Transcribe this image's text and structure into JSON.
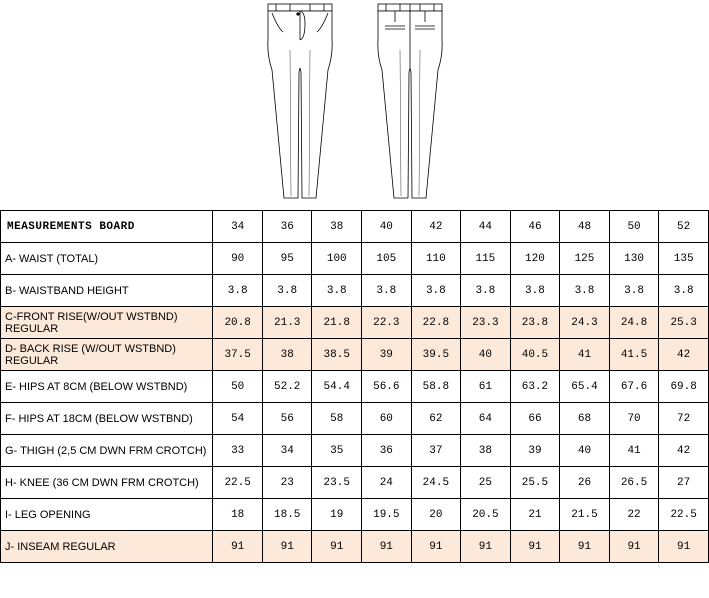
{
  "title": "MEASUREMENTS BOARD",
  "sizes": [
    "34",
    "36",
    "38",
    "40",
    "42",
    "44",
    "46",
    "48",
    "50",
    "52"
  ],
  "rows": [
    {
      "label": "A- WAIST (TOTAL)",
      "peach": false,
      "values": [
        "90",
        "95",
        "100",
        "105",
        "110",
        "115",
        "120",
        "125",
        "130",
        "135"
      ]
    },
    {
      "label": "B- WAISTBAND HEIGHT",
      "peach": false,
      "values": [
        "3.8",
        "3.8",
        "3.8",
        "3.8",
        "3.8",
        "3.8",
        "3.8",
        "3.8",
        "3.8",
        "3.8"
      ]
    },
    {
      "label": "C-FRONT RISE(W/OUT WSTBND) REGULAR",
      "peach": true,
      "values": [
        "20.8",
        "21.3",
        "21.8",
        "22.3",
        "22.8",
        "23.3",
        "23.8",
        "24.3",
        "24.8",
        "25.3"
      ]
    },
    {
      "label": "D- BACK RISE (W/OUT WSTBND) REGULAR",
      "peach": true,
      "values": [
        "37.5",
        "38",
        "38.5",
        "39",
        "39.5",
        "40",
        "40.5",
        "41",
        "41.5",
        "42"
      ]
    },
    {
      "label": "E- HIPS AT 8CM (BELOW WSTBND)",
      "peach": false,
      "values": [
        "50",
        "52.2",
        "54.4",
        "56.6",
        "58.8",
        "61",
        "63.2",
        "65.4",
        "67.6",
        "69.8"
      ]
    },
    {
      "label": "F- HIPS AT 18CM (BELOW WSTBND)",
      "peach": false,
      "values": [
        "54",
        "56",
        "58",
        "60",
        "62",
        "64",
        "66",
        "68",
        "70",
        "72"
      ]
    },
    {
      "label": "G- THIGH (2,5 CM DWN FRM CROTCH)",
      "peach": false,
      "values": [
        "33",
        "34",
        "35",
        "36",
        "37",
        "38",
        "39",
        "40",
        "41",
        "42"
      ]
    },
    {
      "label": "H- KNEE (36 CM DWN FRM CROTCH)",
      "peach": false,
      "values": [
        "22.5",
        "23",
        "23.5",
        "24",
        "24.5",
        "25",
        "25.5",
        "26",
        "26.5",
        "27"
      ]
    },
    {
      "label": "I- LEG OPENING",
      "peach": false,
      "values": [
        "18",
        "18.5",
        "19",
        "19.5",
        "20",
        "20.5",
        "21",
        "21.5",
        "22",
        "22.5"
      ]
    },
    {
      "label": "J- INSEAM REGULAR",
      "peach": true,
      "values": [
        "91",
        "91",
        "91",
        "91",
        "91",
        "91",
        "91",
        "91",
        "91",
        "91"
      ]
    }
  ],
  "colors": {
    "peach": "#fde9d9",
    "dashBlue": "#4a6fd4",
    "border": "#000000"
  }
}
